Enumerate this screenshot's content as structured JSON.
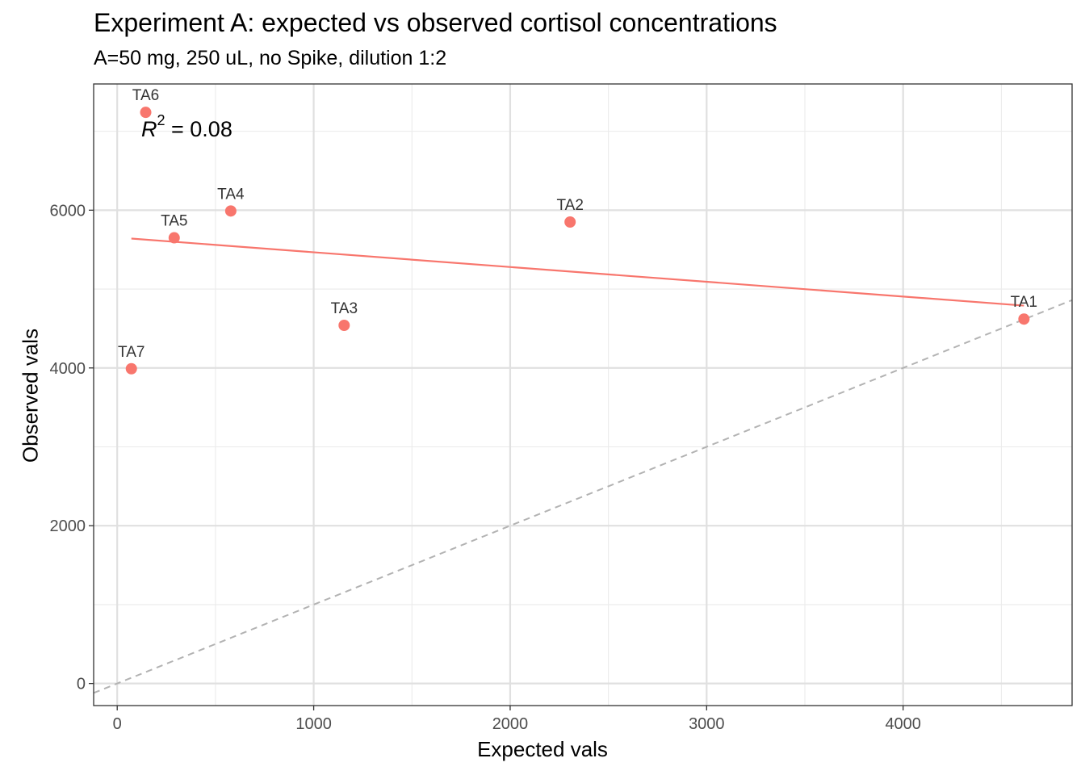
{
  "chart_data": {
    "type": "scatter",
    "title": "Experiment A: expected vs observed cortisol concentrations",
    "subtitle": "A=50 mg, 250 uL, no Spike, dilution 1:2",
    "xlabel": "Expected vals",
    "ylabel": "Observed vals",
    "xlim": [
      -120,
      4860
    ],
    "ylim": [
      -280,
      7600
    ],
    "x_ticks": [
      0,
      1000,
      2000,
      3000,
      4000
    ],
    "y_ticks": [
      0,
      2000,
      4000,
      6000
    ],
    "x_tick_labels": [
      "0",
      "1000",
      "2000",
      "3000",
      "4000"
    ],
    "y_tick_labels": [
      "0",
      "2000",
      "4000",
      "6000"
    ],
    "grid": true,
    "point_color": "#F8766D",
    "points": [
      {
        "label": "TA1",
        "x": 4615,
        "y": 4620
      },
      {
        "label": "TA2",
        "x": 2305,
        "y": 5850
      },
      {
        "label": "TA3",
        "x": 1155,
        "y": 4540
      },
      {
        "label": "TA4",
        "x": 578,
        "y": 5990
      },
      {
        "label": "TA5",
        "x": 290,
        "y": 5650
      },
      {
        "label": "TA6",
        "x": 145,
        "y": 7240
      },
      {
        "label": "TA7",
        "x": 72,
        "y": 3990
      }
    ],
    "fit_line": {
      "x": [
        72,
        4615
      ],
      "y": [
        5640,
        4790
      ],
      "color": "#F8766D"
    },
    "identity_line": {
      "x": [
        -120,
        4860
      ],
      "y": [
        -120,
        4860
      ],
      "color": "#B3B3B3",
      "dash": "dashed"
    },
    "annotation": {
      "text_main": "R",
      "text_sup": "2",
      "text_rest": " = 0.08"
    }
  }
}
